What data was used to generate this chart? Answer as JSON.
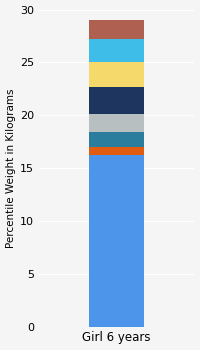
{
  "category": "Girl 6 years",
  "segments": [
    {
      "value": 16.2,
      "color": "#4d94eb"
    },
    {
      "value": 0.75,
      "color": "#e05c10"
    },
    {
      "value": 1.5,
      "color": "#2a7d9c"
    },
    {
      "value": 1.7,
      "color": "#b8bfc0"
    },
    {
      "value": 2.5,
      "color": "#1e3560"
    },
    {
      "value": 2.4,
      "color": "#f5d96b"
    },
    {
      "value": 2.2,
      "color": "#3dbde8"
    },
    {
      "value": 1.75,
      "color": "#b06050"
    }
  ],
  "ylabel": "Percentile Weight in Kilograms",
  "xlabel": "Girl 6 years",
  "ylim": [
    0,
    30
  ],
  "yticks": [
    0,
    5,
    10,
    15,
    20,
    25,
    30
  ],
  "background_color": "#f5f5f5",
  "plot_bg_color": "#f5f5f5",
  "ylabel_fontsize": 7.5,
  "xlabel_fontsize": 8.5,
  "tick_fontsize": 8,
  "bar_width": 0.35
}
